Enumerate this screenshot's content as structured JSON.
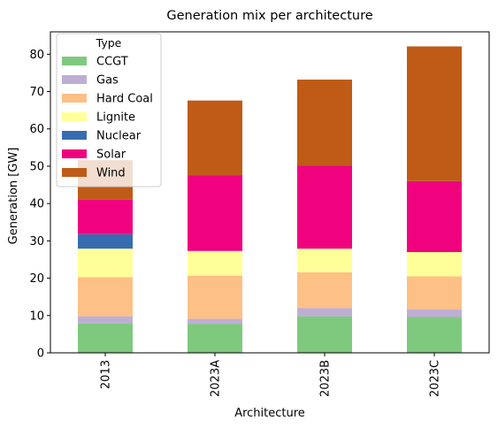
{
  "chart_data": {
    "type": "bar",
    "stacked": true,
    "title": "Generation mix per architecture",
    "xlabel": "Architecture",
    "ylabel": "Generation [GW]",
    "ylim": [
      0,
      86
    ],
    "yticks": [
      0,
      10,
      20,
      30,
      40,
      50,
      60,
      70,
      80
    ],
    "categories": [
      "2013",
      "2023A",
      "2023B",
      "2023C"
    ],
    "grid": false,
    "legend": {
      "title": "Type",
      "placement": "top-left"
    },
    "series": [
      {
        "name": "CCGT",
        "color": "#7fc97f",
        "values": [
          7.9,
          7.8,
          9.8,
          9.6
        ]
      },
      {
        "name": "Gas",
        "color": "#beaed4",
        "values": [
          1.9,
          1.3,
          2.2,
          2.0
        ]
      },
      {
        "name": "Hard Coal",
        "color": "#fdc086",
        "values": [
          10.5,
          11.6,
          9.6,
          8.9
        ]
      },
      {
        "name": "Lignite",
        "color": "#ffff99",
        "values": [
          7.6,
          6.6,
          6.3,
          6.5
        ]
      },
      {
        "name": "Nuclear",
        "color": "#386cb0",
        "values": [
          3.9,
          0,
          0,
          0
        ]
      },
      {
        "name": "Solar",
        "color": "#f0027f",
        "values": [
          9.2,
          20.2,
          22.3,
          19.0
        ]
      },
      {
        "name": "Wind",
        "color": "#bf5b17",
        "values": [
          10.6,
          20.1,
          23.0,
          36.1
        ]
      }
    ]
  }
}
